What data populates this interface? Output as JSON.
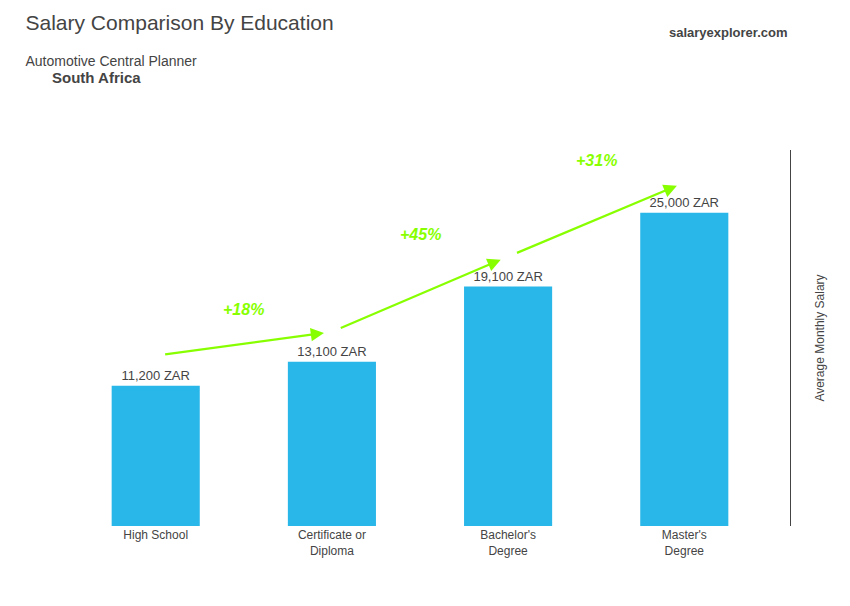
{
  "chart_data": {
    "type": "bar",
    "title": "Salary Comparison By Education",
    "subtitle": "Automotive Central Planner",
    "ylabel": "Average Monthly Salary",
    "categories": [
      "High School",
      "Certificate or\nDiploma",
      "Bachelor's\nDegree",
      "Master's\nDegree"
    ],
    "values": [
      11200,
      13100,
      19100,
      25000
    ],
    "value_labels": [
      "11,200 ZAR",
      "13,100 ZAR",
      "19,100 ZAR",
      "25,000 ZAR"
    ],
    "data_labels": true,
    "color": "#29b6e8",
    "ylim": [
      0,
      30000
    ],
    "grid": false,
    "tick_labels": "x",
    "annotations": [
      {
        "text": "South Africa"
      },
      {
        "text": "salaryexplorer.com"
      },
      {
        "text": "+18%",
        "from": "High School",
        "to": "Certificate or\nDiploma",
        "color": "#88ff00"
      },
      {
        "text": "+45%",
        "from": "Certificate or\nDiploma",
        "to": "Bachelor's\nDegree",
        "color": "#88ff00"
      },
      {
        "text": "+31%",
        "from": "Bachelor's\nDegree",
        "to": "Master's\nDegree",
        "color": "#88ff00"
      }
    ]
  }
}
